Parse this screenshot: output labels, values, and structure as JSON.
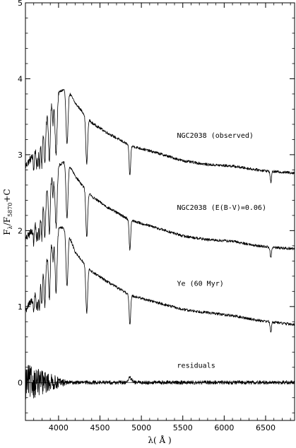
{
  "chart_data": {
    "type": "line",
    "title": "",
    "xlabel": "λ( Å )",
    "ylabel": {
      "main": "F",
      "sub1": "λ",
      "slash": "/F",
      "sub2": "5870",
      "suffix": "+C"
    },
    "xlim": [
      3600,
      6850
    ],
    "ylim": [
      -0.5,
      5
    ],
    "xticks": [
      4000,
      4500,
      5000,
      5500,
      6000,
      6500
    ],
    "yticks": [
      0,
      1,
      2,
      3,
      4,
      5
    ],
    "grid": false,
    "legend": "none",
    "zero_line": 0,
    "series": [
      {
        "name": "NGC2038 (observed)",
        "label_x": 5430,
        "label_y": 3.25,
        "offset": 2,
        "profile": [
          [
            3600,
            0.85
          ],
          [
            3700,
            1.0
          ],
          [
            3800,
            1.32
          ],
          [
            3900,
            1.62
          ],
          [
            4000,
            1.82
          ],
          [
            4100,
            1.88
          ],
          [
            4200,
            1.68
          ],
          [
            4300,
            1.55
          ],
          [
            4400,
            1.42
          ],
          [
            4600,
            1.28
          ],
          [
            4861,
            1.12
          ],
          [
            5200,
            1.02
          ],
          [
            5500,
            0.92
          ],
          [
            5800,
            0.87
          ],
          [
            6100,
            0.85
          ],
          [
            6400,
            0.8
          ],
          [
            6563,
            0.78
          ],
          [
            6850,
            0.76
          ]
        ]
      },
      {
        "name": "NGC2038 (E(B-V)=0.06)",
        "label_x": 5430,
        "label_y": 2.3,
        "offset": 1,
        "profile": [
          [
            3600,
            0.88
          ],
          [
            3700,
            1.03
          ],
          [
            3800,
            1.36
          ],
          [
            3900,
            1.66
          ],
          [
            4000,
            1.86
          ],
          [
            4100,
            1.92
          ],
          [
            4200,
            1.72
          ],
          [
            4300,
            1.58
          ],
          [
            4400,
            1.45
          ],
          [
            4600,
            1.3
          ],
          [
            4861,
            1.14
          ],
          [
            5200,
            1.03
          ],
          [
            5500,
            0.93
          ],
          [
            5800,
            0.88
          ],
          [
            6100,
            0.86
          ],
          [
            6400,
            0.8
          ],
          [
            6563,
            0.78
          ],
          [
            6850,
            0.76
          ]
        ]
      },
      {
        "name": "Ye (60 Myr)",
        "label_x": 5430,
        "label_y": 1.3,
        "offset": 0,
        "profile": [
          [
            3600,
            0.95
          ],
          [
            3700,
            1.12
          ],
          [
            3800,
            1.45
          ],
          [
            3900,
            1.78
          ],
          [
            4000,
            2.05
          ],
          [
            4100,
            2.02
          ],
          [
            4200,
            1.72
          ],
          [
            4300,
            1.58
          ],
          [
            4400,
            1.46
          ],
          [
            4600,
            1.32
          ],
          [
            4861,
            1.15
          ],
          [
            5200,
            1.05
          ],
          [
            5500,
            0.96
          ],
          [
            5800,
            0.92
          ],
          [
            6100,
            0.88
          ],
          [
            6400,
            0.82
          ],
          [
            6563,
            0.8
          ],
          [
            6850,
            0.76
          ]
        ]
      },
      {
        "name": "residuals",
        "label_x": 5430,
        "label_y": 0.22,
        "offset": 0,
        "profile": [
          [
            3600,
            0.0
          ],
          [
            6850,
            0.0
          ]
        ]
      }
    ],
    "absorption_lines": [
      {
        "x": 3700,
        "depth": 0.2,
        "width": 6
      },
      {
        "x": 3734,
        "depth": 0.25,
        "width": 6
      },
      {
        "x": 3750,
        "depth": 0.3,
        "width": 6
      },
      {
        "x": 3770,
        "depth": 0.38,
        "width": 7
      },
      {
        "x": 3798,
        "depth": 0.45,
        "width": 8
      },
      {
        "x": 3835,
        "depth": 0.55,
        "width": 9
      },
      {
        "x": 3889,
        "depth": 0.65,
        "width": 10
      },
      {
        "x": 3933,
        "depth": 0.28,
        "width": 6
      },
      {
        "x": 3970,
        "depth": 0.75,
        "width": 12
      },
      {
        "x": 4102,
        "depth": 0.75,
        "width": 12
      },
      {
        "x": 4340,
        "depth": 0.62,
        "width": 11
      },
      {
        "x": 4861,
        "depth": 0.4,
        "width": 9
      },
      {
        "x": 6563,
        "depth": 0.14,
        "width": 8
      }
    ]
  }
}
